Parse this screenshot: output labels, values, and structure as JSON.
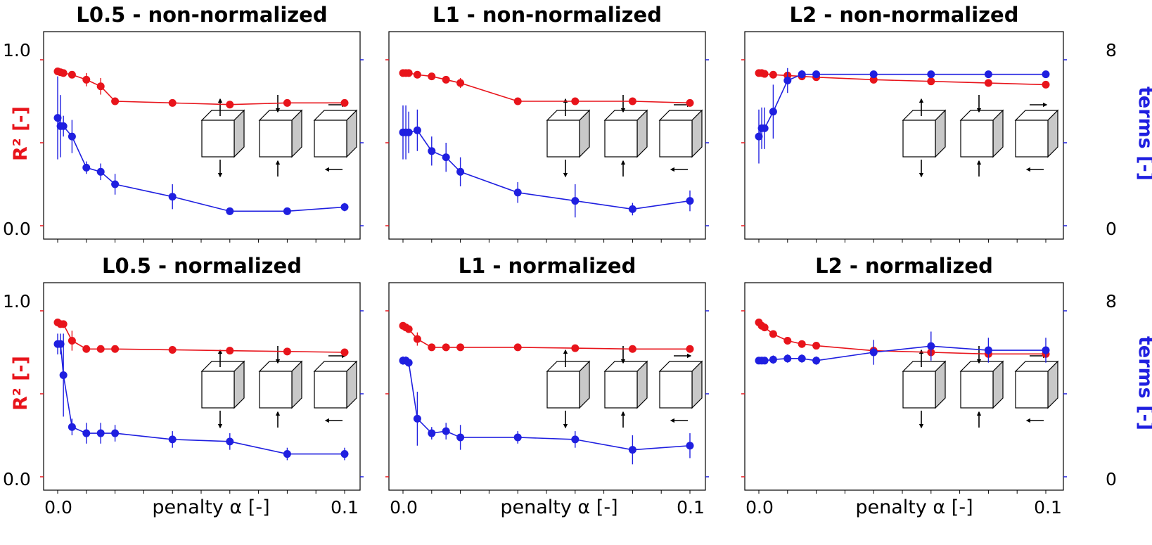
{
  "figure": {
    "left_ylabel": "R² [-]",
    "right_ylabel": "terms [-]",
    "xlabel": "penalty α [-]",
    "left_ticks": [
      "0.0",
      "1.0"
    ],
    "right_ticks": [
      "0",
      "8"
    ],
    "x_ticks": [
      "0.0",
      "0.1"
    ],
    "colors": {
      "r2": "#e8141b",
      "terms": "#1f1fe0",
      "cube_side": "#c8c8c8"
    },
    "icons": [
      "cube-tension-icon",
      "cube-compression-icon",
      "cube-shear-icon"
    ]
  },
  "chart_data": [
    {
      "type": "line",
      "title": "L0.5 - non-normalized",
      "x": [
        0.0,
        0.001,
        0.002,
        0.005,
        0.01,
        0.015,
        0.02,
        0.04,
        0.06,
        0.08,
        0.1
      ],
      "series": [
        {
          "values": [
            0.93,
            0.925,
            0.92,
            0.91,
            0.88,
            0.84,
            0.75,
            0.74,
            0.73,
            0.74,
            0.74
          ],
          "err": [
            0.02,
            0.02,
            0.02,
            0.02,
            0.04,
            0.05,
            0.02,
            0.01,
            0.02,
            0.01,
            0.01
          ]
        },
        {
          "values": [
            5.2,
            4.8,
            4.8,
            4.3,
            2.8,
            2.6,
            2.0,
            1.4,
            0.7,
            0.7,
            0.9
          ],
          "err": [
            2.0,
            1.5,
            0.5,
            0.8,
            0.3,
            0.4,
            0.5,
            0.6,
            0.1,
            0.1,
            0.2
          ]
        }
      ],
      "ylim": [
        0,
        1
      ],
      "y2lim": [
        0,
        8
      ]
    },
    {
      "type": "line",
      "title": "L1 - non-normalized",
      "x": [
        0.0,
        0.001,
        0.002,
        0.005,
        0.01,
        0.015,
        0.02,
        0.04,
        0.06,
        0.08,
        0.1
      ],
      "series": [
        {
          "values": [
            0.92,
            0.92,
            0.92,
            0.91,
            0.9,
            0.88,
            0.86,
            0.75,
            0.75,
            0.75,
            0.74
          ],
          "err": [
            0.01,
            0.01,
            0.01,
            0.01,
            0.01,
            0.01,
            0.03,
            0.01,
            0.01,
            0.01,
            0.01
          ]
        },
        {
          "values": [
            4.5,
            4.5,
            4.5,
            4.6,
            3.6,
            3.3,
            2.6,
            1.6,
            1.2,
            0.8,
            1.2
          ],
          "err": [
            1.3,
            1.3,
            1.0,
            1.0,
            0.7,
            0.7,
            0.7,
            0.5,
            0.8,
            0.3,
            0.5
          ]
        }
      ],
      "ylim": [
        0,
        1
      ],
      "y2lim": [
        0,
        8
      ]
    },
    {
      "type": "line",
      "title": "L2 - non-normalized",
      "x": [
        0.0,
        0.001,
        0.002,
        0.005,
        0.01,
        0.015,
        0.02,
        0.04,
        0.06,
        0.08,
        0.1
      ],
      "series": [
        {
          "values": [
            0.92,
            0.92,
            0.915,
            0.91,
            0.905,
            0.9,
            0.895,
            0.88,
            0.87,
            0.86,
            0.85
          ],
          "err": [
            0.01,
            0.01,
            0.01,
            0.01,
            0.01,
            0.01,
            0.01,
            0.01,
            0.01,
            0.01,
            0.01
          ]
        },
        {
          "values": [
            4.3,
            4.7,
            4.7,
            5.5,
            7.0,
            7.3,
            7.3,
            7.3,
            7.3,
            7.3,
            7.3
          ],
          "err": [
            1.3,
            1.0,
            1.0,
            1.3,
            0.6,
            0.2,
            0.1,
            0.1,
            0.1,
            0.1,
            0.1
          ]
        }
      ],
      "ylim": [
        0,
        1
      ],
      "y2lim": [
        0,
        8
      ]
    },
    {
      "type": "line",
      "title": "L0.5 - normalized",
      "x": [
        0.0,
        0.001,
        0.002,
        0.005,
        0.01,
        0.015,
        0.02,
        0.04,
        0.06,
        0.08,
        0.1
      ],
      "series": [
        {
          "values": [
            0.93,
            0.92,
            0.92,
            0.82,
            0.77,
            0.77,
            0.77,
            0.765,
            0.76,
            0.755,
            0.75
          ],
          "err": [
            0.02,
            0.02,
            0.02,
            0.06,
            0.02,
            0.02,
            0.02,
            0.01,
            0.01,
            0.01,
            0.01
          ]
        },
        {
          "values": [
            6.4,
            6.4,
            4.9,
            2.4,
            2.1,
            2.1,
            2.1,
            1.8,
            1.7,
            1.1,
            1.1
          ],
          "err": [
            0.5,
            0.5,
            2.0,
            0.4,
            0.5,
            0.5,
            0.4,
            0.4,
            0.4,
            0.3,
            0.3
          ]
        }
      ],
      "ylim": [
        0,
        1
      ],
      "y2lim": [
        0,
        8
      ]
    },
    {
      "type": "line",
      "title": "L1 - normalized",
      "x": [
        0.0,
        0.001,
        0.002,
        0.005,
        0.01,
        0.015,
        0.02,
        0.04,
        0.06,
        0.08,
        0.1
      ],
      "series": [
        {
          "values": [
            0.91,
            0.9,
            0.89,
            0.83,
            0.78,
            0.78,
            0.78,
            0.78,
            0.775,
            0.77,
            0.77
          ],
          "err": [
            0.01,
            0.01,
            0.01,
            0.04,
            0.01,
            0.01,
            0.01,
            0.01,
            0.01,
            0.01,
            0.01
          ]
        },
        {
          "values": [
            5.6,
            5.6,
            5.5,
            2.8,
            2.1,
            2.2,
            1.9,
            1.9,
            1.8,
            1.3,
            1.5
          ],
          "err": [
            0.2,
            0.2,
            0.2,
            1.3,
            0.3,
            0.4,
            0.6,
            0.3,
            0.4,
            0.7,
            0.6
          ]
        }
      ],
      "ylim": [
        0,
        1
      ],
      "y2lim": [
        0,
        8
      ]
    },
    {
      "type": "line",
      "title": "L2 - normalized",
      "x": [
        0.0,
        0.001,
        0.002,
        0.005,
        0.01,
        0.015,
        0.02,
        0.04,
        0.06,
        0.08,
        0.1
      ],
      "series": [
        {
          "values": [
            0.93,
            0.91,
            0.9,
            0.86,
            0.82,
            0.8,
            0.79,
            0.76,
            0.75,
            0.74,
            0.74
          ],
          "err": [
            0.01,
            0.01,
            0.01,
            0.02,
            0.01,
            0.01,
            0.01,
            0.01,
            0.01,
            0.01,
            0.01
          ]
        },
        {
          "values": [
            5.6,
            5.6,
            5.6,
            5.65,
            5.7,
            5.7,
            5.6,
            6.0,
            6.3,
            6.1,
            6.1
          ],
          "err": [
            0.15,
            0.15,
            0.15,
            0.2,
            0.2,
            0.2,
            0.2,
            0.6,
            0.7,
            0.6,
            0.6
          ]
        }
      ],
      "ylim": [
        0,
        1
      ],
      "y2lim": [
        0,
        8
      ]
    }
  ]
}
